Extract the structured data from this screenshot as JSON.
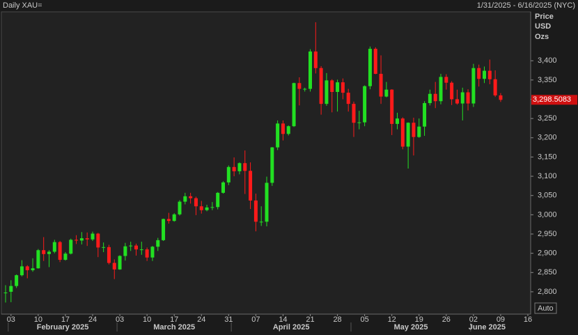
{
  "chart_data": {
    "type": "candlestick",
    "title": "Daily XAU=",
    "subtitle": "1/31/2025 - 6/16/2025 (NYC)",
    "y_axis_label": [
      "Price",
      "USD",
      "Ozs"
    ],
    "auto_button": "Auto",
    "up_color": "#22e022",
    "down_color": "#ff1a1a",
    "xlim": [
      "2025-01-31",
      "2025-06-16"
    ],
    "ylim": [
      2742,
      3527
    ],
    "yticks": [
      {
        "value": 2800,
        "label": "2,800"
      },
      {
        "value": 2850,
        "label": "2,850"
      },
      {
        "value": 2900,
        "label": "2,900"
      },
      {
        "value": 2950,
        "label": "2,950"
      },
      {
        "value": 3000,
        "label": "3,000"
      },
      {
        "value": 3050,
        "label": "3,050"
      },
      {
        "value": 3100,
        "label": "3,100"
      },
      {
        "value": 3150,
        "label": "3,150"
      },
      {
        "value": 3200,
        "label": "3,200"
      },
      {
        "value": 3250,
        "label": "3,250"
      },
      {
        "value": 3300,
        "label": "3,300"
      },
      {
        "value": 3350,
        "label": "3,350"
      },
      {
        "value": 3400,
        "label": "3,400"
      }
    ],
    "xticks": [
      {
        "value": "2025-02-03",
        "label": "03"
      },
      {
        "value": "2025-02-10",
        "label": "10"
      },
      {
        "value": "2025-02-17",
        "label": "17"
      },
      {
        "value": "2025-02-24",
        "label": "24"
      },
      {
        "value": "2025-03-03",
        "label": "03"
      },
      {
        "value": "2025-03-10",
        "label": "10"
      },
      {
        "value": "2025-03-17",
        "label": "17"
      },
      {
        "value": "2025-03-24",
        "label": "24"
      },
      {
        "value": "2025-03-31",
        "label": "31"
      },
      {
        "value": "2025-04-07",
        "label": "07"
      },
      {
        "value": "2025-04-14",
        "label": "14"
      },
      {
        "value": "2025-04-21",
        "label": "21"
      },
      {
        "value": "2025-04-28",
        "label": "28"
      },
      {
        "value": "2025-05-05",
        "label": "05"
      },
      {
        "value": "2025-05-12",
        "label": "12"
      },
      {
        "value": "2025-05-19",
        "label": "19"
      },
      {
        "value": "2025-05-26",
        "label": "26"
      },
      {
        "value": "2025-06-02",
        "label": "02"
      },
      {
        "value": "2025-06-09",
        "label": "09"
      },
      {
        "value": "2025-06-16",
        "label": "16"
      }
    ],
    "months": [
      {
        "value": "2025-02",
        "label": "February 2025"
      },
      {
        "value": "2025-03",
        "label": "March 2025"
      },
      {
        "value": "2025-04",
        "label": "April 2025"
      },
      {
        "value": "2025-05",
        "label": "May 2025"
      },
      {
        "value": "2025-06",
        "label": "June 2025"
      }
    ],
    "x": [
      "2025-01-31",
      "2025-02-03",
      "2025-02-04",
      "2025-02-05",
      "2025-02-06",
      "2025-02-07",
      "2025-02-10",
      "2025-02-11",
      "2025-02-12",
      "2025-02-13",
      "2025-02-14",
      "2025-02-17",
      "2025-02-18",
      "2025-02-19",
      "2025-02-20",
      "2025-02-21",
      "2025-02-24",
      "2025-02-25",
      "2025-02-26",
      "2025-02-27",
      "2025-02-28",
      "2025-03-03",
      "2025-03-04",
      "2025-03-05",
      "2025-03-06",
      "2025-03-07",
      "2025-03-10",
      "2025-03-11",
      "2025-03-12",
      "2025-03-13",
      "2025-03-14",
      "2025-03-17",
      "2025-03-18",
      "2025-03-19",
      "2025-03-20",
      "2025-03-21",
      "2025-03-24",
      "2025-03-25",
      "2025-03-26",
      "2025-03-27",
      "2025-03-28",
      "2025-03-31",
      "2025-04-01",
      "2025-04-02",
      "2025-04-03",
      "2025-04-04",
      "2025-04-07",
      "2025-04-08",
      "2025-04-09",
      "2025-04-10",
      "2025-04-11",
      "2025-04-14",
      "2025-04-15",
      "2025-04-16",
      "2025-04-17",
      "2025-04-18",
      "2025-04-21",
      "2025-04-22",
      "2025-04-23",
      "2025-04-24",
      "2025-04-25",
      "2025-04-28",
      "2025-04-29",
      "2025-04-30",
      "2025-05-01",
      "2025-05-02",
      "2025-05-05",
      "2025-05-06",
      "2025-05-07",
      "2025-05-08",
      "2025-05-09",
      "2025-05-12",
      "2025-05-13",
      "2025-05-14",
      "2025-05-15",
      "2025-05-16",
      "2025-05-19",
      "2025-05-20",
      "2025-05-21",
      "2025-05-22",
      "2025-05-23",
      "2025-05-26",
      "2025-05-27",
      "2025-05-28",
      "2025-05-29",
      "2025-05-30",
      "2025-06-02",
      "2025-06-03",
      "2025-06-04",
      "2025-06-05",
      "2025-06-06",
      "2025-06-09"
    ],
    "open": [
      2797,
      2800,
      2815,
      2843,
      2866,
      2856,
      2861,
      2908,
      2898,
      2904,
      2929,
      2883,
      2899,
      2935,
      2933,
      2939,
      2936,
      2951,
      2915,
      2916,
      2875,
      2858,
      2893,
      2918,
      2920,
      2910,
      2910,
      2889,
      2917,
      2934,
      2989,
      2984,
      3001,
      3034,
      3048,
      3043,
      3022,
      3012,
      3019,
      3020,
      3057,
      3084,
      3124,
      3113,
      3134,
      3114,
      3037,
      2982,
      2982,
      3083,
      3175,
      3237,
      3210,
      3230,
      3342,
      3327,
      3327,
      3424,
      3381,
      3288,
      3349,
      3319,
      3344,
      3317,
      3288,
      3239,
      3240,
      3334,
      3431,
      3366,
      3307,
      3325,
      3236,
      3250,
      3177,
      3239,
      3202,
      3229,
      3290,
      3314,
      3295,
      3358,
      3343,
      3300,
      3289,
      3318,
      3289,
      3381,
      3353,
      3374,
      3352,
      3310
    ],
    "high": [
      2817,
      2830,
      2845,
      2882,
      2869,
      2887,
      2911,
      2942,
      2908,
      2935,
      2932,
      2903,
      2938,
      2947,
      2955,
      2954,
      2956,
      2953,
      2928,
      2922,
      2884,
      2895,
      2927,
      2930,
      2925,
      2930,
      2915,
      2919,
      2940,
      2990,
      3005,
      3004,
      3038,
      3057,
      3057,
      3047,
      3036,
      3026,
      3033,
      3059,
      3087,
      3128,
      3149,
      3136,
      3167,
      3136,
      3055,
      3022,
      3099,
      3176,
      3245,
      3245,
      3232,
      3343,
      3357,
      3330,
      3430,
      3500,
      3386,
      3368,
      3352,
      3351,
      3354,
      3327,
      3294,
      3270,
      3336,
      3437,
      3435,
      3414,
      3345,
      3326,
      3265,
      3253,
      3240,
      3252,
      3250,
      3295,
      3325,
      3345,
      3366,
      3365,
      3347,
      3325,
      3330,
      3326,
      3392,
      3390,
      3385,
      3403,
      3375,
      3316
    ],
    "low": [
      2772,
      2773,
      2810,
      2840,
      2835,
      2852,
      2860,
      2880,
      2864,
      2900,
      2877,
      2881,
      2897,
      2924,
      2923,
      2919,
      2932,
      2890,
      2903,
      2871,
      2833,
      2857,
      2881,
      2906,
      2894,
      2896,
      2880,
      2880,
      2906,
      2932,
      2977,
      2982,
      2998,
      3027,
      3029,
      2999,
      3003,
      3009,
      3012,
      3014,
      3055,
      3077,
      3100,
      3105,
      3054,
      3015,
      2957,
      2971,
      2970,
      3075,
      3168,
      3193,
      3206,
      3228,
      3284,
      3320,
      3320,
      3367,
      3260,
      3283,
      3266,
      3268,
      3300,
      3268,
      3202,
      3222,
      3230,
      3326,
      3365,
      3288,
      3305,
      3207,
      3222,
      3170,
      3120,
      3154,
      3200,
      3205,
      3284,
      3277,
      3287,
      3325,
      3285,
      3286,
      3245,
      3271,
      3280,
      3333,
      3342,
      3339,
      3306,
      3293
    ],
    "close": [
      2798,
      2815,
      2843,
      2866,
      2856,
      2861,
      2908,
      2898,
      2904,
      2929,
      2883,
      2899,
      2935,
      2933,
      2939,
      2936,
      2951,
      2915,
      2916,
      2875,
      2858,
      2893,
      2918,
      2920,
      2910,
      2910,
      2889,
      2917,
      2934,
      2989,
      2984,
      3001,
      3034,
      3048,
      3043,
      3022,
      3012,
      3019,
      3020,
      3057,
      3084,
      3124,
      3113,
      3134,
      3114,
      3037,
      2982,
      2982,
      3083,
      3175,
      3237,
      3210,
      3230,
      3342,
      3327,
      3327,
      3424,
      3381,
      3288,
      3349,
      3319,
      3344,
      3317,
      3288,
      3239,
      3240,
      3334,
      3431,
      3366,
      3307,
      3325,
      3236,
      3250,
      3177,
      3239,
      3202,
      3229,
      3290,
      3314,
      3295,
      3358,
      3343,
      3300,
      3289,
      3318,
      3289,
      3381,
      3353,
      3374,
      3352,
      3310,
      3298.5083
    ],
    "last_close_label": "3,298.5083"
  }
}
